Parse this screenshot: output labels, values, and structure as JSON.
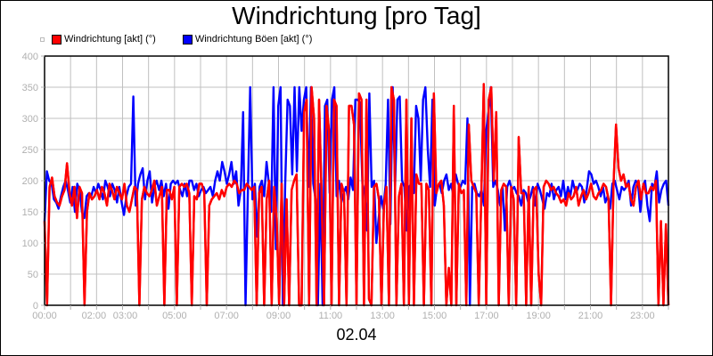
{
  "chart_data": {
    "type": "line",
    "title": "Windrichtung [pro Tag]",
    "xlabel": "02.04",
    "ylabel": "",
    "ylim": [
      0,
      400
    ],
    "yticks": [
      0,
      50,
      100,
      150,
      200,
      250,
      300,
      350,
      400
    ],
    "xlim_hours": [
      0,
      24
    ],
    "xtick_labels": [
      {
        "label": "00:00",
        "hour": 0
      },
      {
        "label": "02:00",
        "hour": 2
      },
      {
        "label": "03:00",
        "hour": 3
      },
      {
        "label": "05:00",
        "hour": 5
      },
      {
        "label": "07:00",
        "hour": 7
      },
      {
        "label": "09:00",
        "hour": 9
      },
      {
        "label": "11:00",
        "hour": 11
      },
      {
        "label": "13:00",
        "hour": 13
      },
      {
        "label": "15:00",
        "hour": 15
      },
      {
        "label": "17:00",
        "hour": 17
      },
      {
        "label": "19:00",
        "hour": 19
      },
      {
        "label": "21:00",
        "hour": 21
      },
      {
        "label": "23:00",
        "hour": 23
      }
    ],
    "grid": true,
    "legend_position": "top-left",
    "series": [
      {
        "name": "Windrichtung [akt] (°)",
        "color": "#ff0000",
        "step_minutes": 10,
        "values": [
          135,
          0,
          190,
          205,
          175,
          165,
          160,
          175,
          185,
          228,
          180,
          160,
          190,
          140,
          190,
          180,
          0,
          150,
          180,
          170,
          175,
          185,
          170,
          190,
          180,
          160,
          195,
          185,
          170,
          190,
          180,
          170,
          195,
          160,
          150,
          170,
          190,
          185,
          0,
          170,
          190,
          180,
          175,
          185,
          200,
          160,
          175,
          190,
          0,
          185,
          185,
          170,
          190,
          0,
          190,
          195,
          190,
          195,
          180,
          0,
          175,
          170,
          195,
          195,
          180,
          0,
          160,
          170,
          175,
          180,
          170,
          185,
          175,
          190,
          195,
          190,
          200,
          195,
          180,
          185,
          185,
          195,
          190,
          185,
          190,
          0,
          180,
          190,
          0,
          170,
          200,
          0,
          190,
          140,
          0,
          195,
          0,
          170,
          0,
          185,
          200,
          210,
          0,
          0,
          310,
          330,
          0,
          350,
          300,
          0,
          330,
          180,
          0,
          320,
          280,
          0,
          330,
          320,
          0,
          195,
          180,
          0,
          320,
          320,
          290,
          0,
          340,
          330,
          0,
          330,
          10,
          0,
          190,
          195,
          170,
          0,
          160,
          190,
          0,
          350,
          330,
          0,
          175,
          195,
          0,
          330,
          0,
          300,
          0,
          210,
          195,
          195,
          0,
          195,
          185,
          0,
          340,
          180,
          195,
          200,
          160,
          0,
          60,
          0,
          320,
          0,
          195,
          180,
          185,
          0,
          290,
          200,
          190,
          180,
          0,
          175,
          355,
          0,
          330,
          350,
          200,
          310,
          0,
          185,
          195,
          190,
          0,
          190,
          170,
          0,
          270,
          180,
          180,
          0,
          190,
          0,
          185,
          190,
          50,
          0,
          190,
          200,
          195,
          185,
          190,
          180,
          175,
          165,
          170,
          160,
          180,
          170,
          175,
          190,
          160,
          175,
          185,
          170,
          180,
          195,
          175,
          170,
          180,
          185,
          195,
          190,
          170,
          0,
          195,
          290,
          220,
          200,
          210,
          190,
          195,
          170,
          160,
          190,
          200,
          170,
          195,
          180,
          180,
          190,
          185,
          200,
          0,
          135,
          0,
          130,
          0
        ]
      },
      {
        "name": "Windrichtung Böen [akt] (°)",
        "color": "#0000ff",
        "step_minutes": 10,
        "values": [
          135,
          215,
          200,
          195,
          170,
          165,
          155,
          175,
          190,
          200,
          185,
          165,
          190,
          150,
          195,
          185,
          150,
          140,
          175,
          180,
          175,
          190,
          180,
          195,
          185,
          170,
          200,
          190,
          175,
          195,
          185,
          165,
          190,
          165,
          145,
          175,
          190,
          195,
          335,
          160,
          195,
          210,
          220,
          170,
          200,
          215,
          165,
          190,
          200,
          185,
          200,
          175,
          195,
          155,
          195,
          200,
          195,
          200,
          185,
          175,
          195,
          175,
          200,
          200,
          185,
          195,
          175,
          185,
          190,
          180,
          185,
          190,
          175,
          200,
          215,
          200,
          230,
          215,
          195,
          210,
          230,
          195,
          215,
          160,
          185,
          310,
          0,
          180,
          350,
          170,
          195,
          110,
          190,
          200,
          175,
          230,
          195,
          150,
          350,
          90,
          320,
          350,
          0,
          195,
          330,
          320,
          210,
          350,
          215,
          350,
          280,
          330,
          350,
          190,
          350,
          195,
          170,
          0,
          195,
          0,
          320,
          330,
          180,
          330,
          350,
          175,
          200,
          165,
          180,
          190,
          170,
          205,
          185,
          330,
          330,
          325,
          195,
          180,
          120,
          340,
          190,
          200,
          100,
          140,
          175,
          155,
          195,
          330,
          130,
          350,
          190,
          330,
          335,
          200,
          190,
          120,
          190,
          195,
          180,
          320,
          300,
          200,
          330,
          350,
          250,
          190,
          330,
          160,
          190,
          195,
          180,
          200,
          210,
          185,
          195,
          175,
          210,
          195,
          190,
          200,
          195,
          300,
          0,
          190,
          195,
          180,
          175,
          185,
          160,
          280,
          310,
          350,
          190,
          200,
          185,
          160,
          190,
          120,
          190,
          200,
          185,
          190,
          180,
          175,
          160,
          185,
          180,
          165,
          175,
          190,
          160,
          195,
          185,
          170,
          155,
          180,
          175,
          195,
          170,
          185,
          190,
          175,
          200,
          170,
          190,
          175,
          200,
          185,
          185,
          195,
          190,
          165,
          185,
          215,
          210,
          195,
          200,
          190,
          175,
          190,
          165,
          175,
          155,
          195,
          200,
          185,
          170,
          190,
          185,
          190,
          200,
          160,
          190,
          200,
          195,
          150,
          190,
          200,
          160,
          135,
          195,
          190,
          215,
          165,
          185,
          195,
          200,
          160
        ]
      }
    ]
  },
  "legend": {
    "items": [
      {
        "label": "Windrichtung [akt] (°)",
        "color": "#ff0000"
      },
      {
        "label": "Windrichtung Böen [akt] (°)",
        "color": "#0000ff"
      }
    ]
  }
}
